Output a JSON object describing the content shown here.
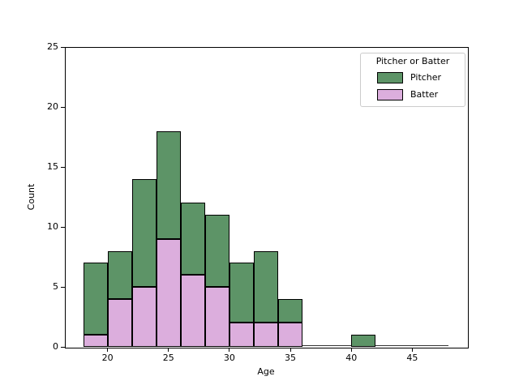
{
  "chart_data": {
    "type": "bar",
    "subtype": "stacked-histogram",
    "title": "",
    "xlabel": "Age",
    "ylabel": "Count",
    "xlim": [
      16.5,
      49.5
    ],
    "ylim": [
      0,
      25
    ],
    "x_ticks": [
      20,
      25,
      30,
      35,
      40,
      45
    ],
    "y_ticks": [
      0,
      5,
      10,
      15,
      20,
      25
    ],
    "bin_width": 2,
    "bins_start": [
      18,
      20,
      22,
      24,
      26,
      28,
      30,
      32,
      34,
      36,
      38,
      40,
      42,
      44,
      46
    ],
    "categories": [
      "18-20",
      "20-22",
      "22-24",
      "24-26",
      "26-28",
      "28-30",
      "30-32",
      "32-34",
      "34-36",
      "36-38",
      "38-40",
      "40-42",
      "42-44",
      "44-46",
      "46-48"
    ],
    "series": [
      {
        "name": "Batter",
        "color": "#dcaedd",
        "values": [
          1,
          4,
          5,
          9,
          6,
          5,
          2,
          2,
          2,
          0,
          0,
          0,
          0,
          0,
          0
        ]
      },
      {
        "name": "Pitcher",
        "color": "#5d9467",
        "values": [
          6,
          4,
          9,
          9,
          6,
          6,
          5,
          6,
          2,
          0,
          0,
          1,
          0,
          0,
          0
        ]
      }
    ],
    "totals": [
      7,
      8,
      14,
      18,
      12,
      11,
      7,
      8,
      4,
      0,
      0,
      1,
      0,
      0,
      0
    ],
    "edge_color": "#000000",
    "grid": false,
    "legend": {
      "title": "Pitcher or Batter",
      "position": "upper right",
      "entries": [
        {
          "label": "Pitcher",
          "color": "#5d9467"
        },
        {
          "label": "Batter",
          "color": "#dcaedd"
        }
      ]
    }
  }
}
